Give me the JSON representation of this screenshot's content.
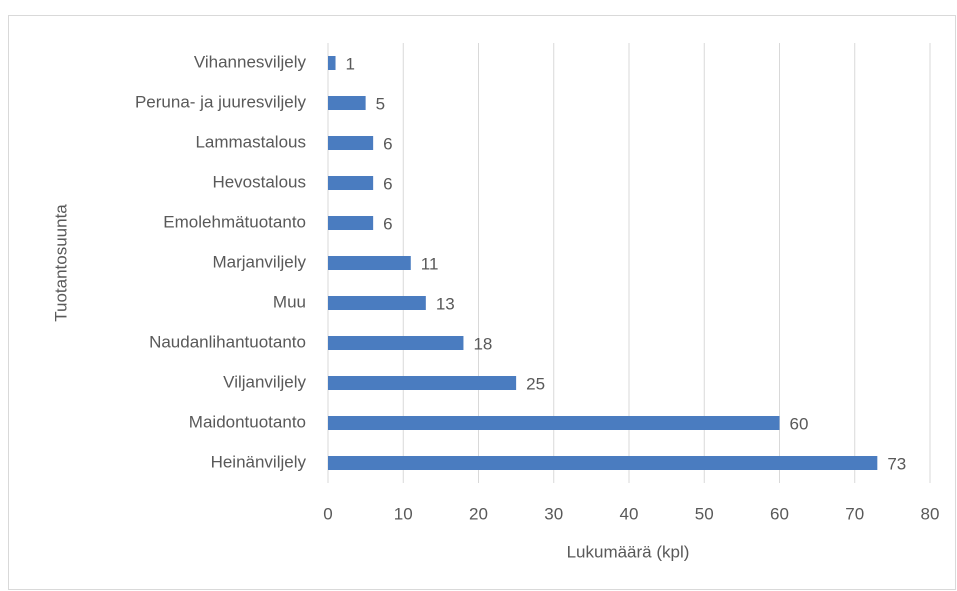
{
  "chart_data": {
    "type": "bar",
    "orientation": "horizontal",
    "x_label": "Lukumäärä (kpl)",
    "y_label": "Tuotantosuunta",
    "categories": [
      "Vihannesviljely",
      "Peruna- ja juuresviljely",
      "Lammastalous",
      "Hevostalous",
      "Emolehmätuotanto",
      "Marjanviljely",
      "Muu",
      "Naudanlihantuotanto",
      "Viljanviljely",
      "Maidontuotanto",
      "Heinänviljely"
    ],
    "values": [
      1,
      5,
      6,
      6,
      6,
      11,
      13,
      18,
      25,
      60,
      73
    ],
    "color": "#4a7cc0",
    "xlim": [
      0,
      80
    ],
    "xticks": [
      0,
      10,
      20,
      30,
      40,
      50,
      60,
      70,
      80
    ],
    "grid": true,
    "data_labels": true
  }
}
